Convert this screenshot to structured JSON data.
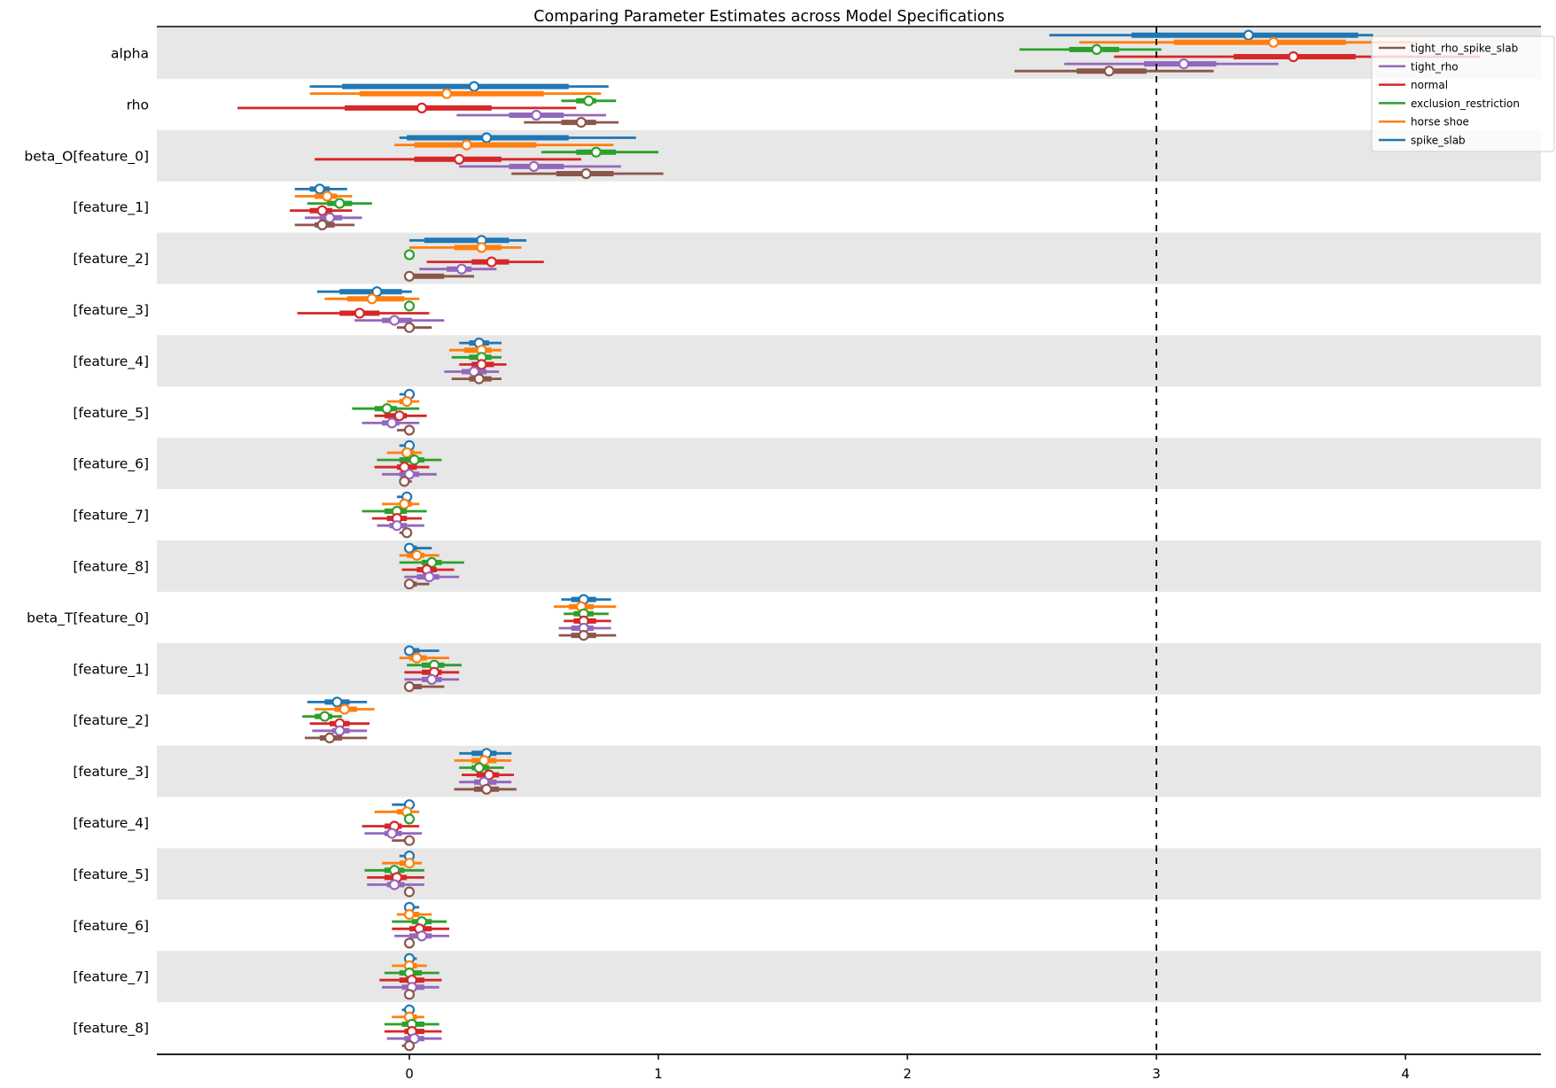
{
  "chart_data": {
    "type": "forest",
    "title": "Comparing Parameter Estimates across Model Specifications",
    "xlabel": "",
    "ylabel": "",
    "x_ticks": [
      0,
      1,
      2,
      3,
      4
    ],
    "xlim": [
      -1.014,
      4.544
    ],
    "reference_line_x": 3,
    "grid": false,
    "legend_position": "upper right",
    "colors": {
      "band": "#e7e7e7",
      "axis": "#000000",
      "reference_line": "#000000",
      "legend_border": "#cccccc",
      "marker_fill": "#ffffff"
    },
    "series": [
      {
        "name": "spike_slab",
        "color": "#1f77b4"
      },
      {
        "name": "horse shoe",
        "color": "#ff7f0e"
      },
      {
        "name": "exclusion_restriction",
        "color": "#2ca02c"
      },
      {
        "name": "normal",
        "color": "#d62728"
      },
      {
        "name": "tight_rho",
        "color": "#9467bd"
      },
      {
        "name": "tight_rho_spike_slab",
        "color": "#8c564b"
      }
    ],
    "interval_format": [
      "hdi_low",
      "quartile_low",
      "median",
      "quartile_high",
      "hdi_high"
    ],
    "rows": [
      {
        "label": "alpha",
        "shaded": true,
        "values": [
          [
            2.57,
            2.9,
            3.37,
            3.81,
            3.87
          ],
          [
            2.69,
            3.07,
            3.47,
            3.76,
            4.05
          ],
          [
            2.45,
            2.65,
            2.76,
            2.85,
            3.02
          ],
          [
            2.83,
            3.31,
            3.55,
            3.8,
            4.3
          ],
          [
            2.63,
            2.95,
            3.11,
            3.24,
            3.49
          ],
          [
            2.43,
            2.68,
            2.81,
            2.96,
            3.23
          ]
        ]
      },
      {
        "label": "rho",
        "shaded": false,
        "values": [
          [
            -0.4,
            -0.27,
            0.26,
            0.64,
            0.8
          ],
          [
            -0.4,
            -0.2,
            0.15,
            0.54,
            0.77
          ],
          [
            0.61,
            0.67,
            0.72,
            0.75,
            0.83
          ],
          [
            -0.69,
            -0.26,
            0.05,
            0.33,
            0.67
          ],
          [
            0.19,
            0.4,
            0.51,
            0.62,
            0.79
          ],
          [
            0.46,
            0.61,
            0.69,
            0.75,
            0.84
          ]
        ]
      },
      {
        "label": "beta_O[feature_0]",
        "shaded": true,
        "values": [
          [
            -0.04,
            -0.01,
            0.31,
            0.64,
            0.91
          ],
          [
            -0.06,
            0.02,
            0.23,
            0.51,
            0.82
          ],
          [
            0.53,
            0.67,
            0.75,
            0.83,
            1.0
          ],
          [
            -0.38,
            0.02,
            0.2,
            0.37,
            0.69
          ],
          [
            0.2,
            0.4,
            0.5,
            0.62,
            0.85
          ],
          [
            0.41,
            0.59,
            0.71,
            0.82,
            1.02
          ]
        ]
      },
      {
        "label": "[feature_1]",
        "shaded": false,
        "values": [
          [
            -0.46,
            -0.4,
            -0.36,
            -0.32,
            -0.25
          ],
          [
            -0.46,
            -0.38,
            -0.33,
            -0.29,
            -0.23
          ],
          [
            -0.41,
            -0.33,
            -0.28,
            -0.23,
            -0.15
          ],
          [
            -0.48,
            -0.4,
            -0.35,
            -0.31,
            -0.23
          ],
          [
            -0.42,
            -0.36,
            -0.32,
            -0.27,
            -0.19
          ],
          [
            -0.46,
            -0.38,
            -0.35,
            -0.3,
            -0.22
          ]
        ]
      },
      {
        "label": "[feature_2]",
        "shaded": true,
        "values": [
          [
            0.0,
            0.06,
            0.29,
            0.4,
            0.47
          ],
          [
            0.0,
            0.18,
            0.29,
            0.37,
            0.45
          ],
          [
            0.0,
            0.0,
            0.0,
            0.0,
            0.0
          ],
          [
            0.07,
            0.25,
            0.33,
            0.4,
            0.54
          ],
          [
            0.04,
            0.15,
            0.21,
            0.25,
            0.35
          ],
          [
            0.0,
            0.0,
            0.0,
            0.14,
            0.26
          ]
        ]
      },
      {
        "label": "[feature_3]",
        "shaded": false,
        "values": [
          [
            -0.37,
            -0.28,
            -0.13,
            -0.03,
            0.01
          ],
          [
            -0.34,
            -0.25,
            -0.15,
            -0.02,
            0.04
          ],
          [
            0.0,
            0.0,
            0.0,
            0.0,
            0.0
          ],
          [
            -0.45,
            -0.28,
            -0.2,
            -0.12,
            0.08
          ],
          [
            -0.22,
            -0.11,
            -0.06,
            0.01,
            0.14
          ],
          [
            -0.05,
            -0.01,
            0.0,
            0.02,
            0.09
          ]
        ]
      },
      {
        "label": "[feature_4]",
        "shaded": true,
        "values": [
          [
            0.2,
            0.24,
            0.28,
            0.32,
            0.37
          ],
          [
            0.16,
            0.22,
            0.29,
            0.33,
            0.37
          ],
          [
            0.17,
            0.24,
            0.29,
            0.33,
            0.37
          ],
          [
            0.2,
            0.25,
            0.29,
            0.34,
            0.39
          ],
          [
            0.14,
            0.21,
            0.26,
            0.31,
            0.36
          ],
          [
            0.17,
            0.24,
            0.28,
            0.33,
            0.37
          ]
        ]
      },
      {
        "label": "[feature_5]",
        "shaded": false,
        "values": [
          [
            -0.04,
            -0.01,
            0.0,
            0.01,
            0.02
          ],
          [
            -0.09,
            -0.04,
            -0.01,
            0.01,
            0.04
          ],
          [
            -0.23,
            -0.14,
            -0.09,
            -0.05,
            0.04
          ],
          [
            -0.14,
            -0.1,
            -0.04,
            -0.01,
            0.07
          ],
          [
            -0.19,
            -0.11,
            -0.07,
            -0.04,
            0.04
          ],
          [
            -0.05,
            -0.01,
            0.0,
            0.0,
            0.01
          ]
        ]
      },
      {
        "label": "[feature_6]",
        "shaded": true,
        "values": [
          [
            -0.04,
            -0.01,
            0.0,
            0.01,
            0.02
          ],
          [
            -0.09,
            -0.03,
            -0.01,
            0.02,
            0.05
          ],
          [
            -0.13,
            -0.04,
            0.02,
            0.06,
            0.13
          ],
          [
            -0.14,
            -0.05,
            -0.02,
            0.03,
            0.08
          ],
          [
            -0.11,
            -0.04,
            0.0,
            0.04,
            0.11
          ],
          [
            -0.04,
            -0.02,
            -0.02,
            -0.01,
            0.01
          ]
        ]
      },
      {
        "label": "[feature_7]",
        "shaded": false,
        "values": [
          [
            -0.05,
            -0.02,
            -0.01,
            0.0,
            0.01
          ],
          [
            -0.11,
            -0.04,
            -0.02,
            0.01,
            0.04
          ],
          [
            -0.19,
            -0.1,
            -0.05,
            -0.01,
            0.07
          ],
          [
            -0.15,
            -0.09,
            -0.05,
            -0.01,
            0.05
          ],
          [
            -0.13,
            -0.08,
            -0.05,
            -0.01,
            0.06
          ],
          [
            -0.04,
            -0.01,
            -0.01,
            0.0,
            0.01
          ]
        ]
      },
      {
        "label": "[feature_8]",
        "shaded": true,
        "values": [
          [
            0.0,
            0.0,
            0.0,
            0.03,
            0.09
          ],
          [
            -0.04,
            -0.01,
            0.03,
            0.06,
            0.12
          ],
          [
            -0.04,
            0.05,
            0.09,
            0.13,
            0.22
          ],
          [
            -0.03,
            0.03,
            0.07,
            0.11,
            0.18
          ],
          [
            -0.02,
            0.03,
            0.08,
            0.12,
            0.2
          ],
          [
            0.0,
            0.0,
            0.0,
            0.03,
            0.08
          ]
        ]
      },
      {
        "label": "beta_T[feature_0]",
        "shaded": false,
        "values": [
          [
            0.61,
            0.65,
            0.7,
            0.75,
            0.81
          ],
          [
            0.58,
            0.64,
            0.69,
            0.74,
            0.83
          ],
          [
            0.62,
            0.66,
            0.7,
            0.74,
            0.8
          ],
          [
            0.62,
            0.66,
            0.7,
            0.75,
            0.81
          ],
          [
            0.6,
            0.65,
            0.7,
            0.74,
            0.81
          ],
          [
            0.6,
            0.65,
            0.7,
            0.75,
            0.83
          ]
        ]
      },
      {
        "label": "[feature_1]",
        "shaded": true,
        "values": [
          [
            0.0,
            0.0,
            0.0,
            0.04,
            0.12
          ],
          [
            -0.04,
            0.0,
            0.03,
            0.07,
            0.16
          ],
          [
            -0.01,
            0.05,
            0.1,
            0.14,
            0.21
          ],
          [
            -0.02,
            0.05,
            0.1,
            0.13,
            0.2
          ],
          [
            -0.02,
            0.05,
            0.09,
            0.13,
            0.2
          ],
          [
            0.0,
            0.0,
            0.0,
            0.05,
            0.14
          ]
        ]
      },
      {
        "label": "[feature_2]",
        "shaded": false,
        "values": [
          [
            -0.41,
            -0.34,
            -0.29,
            -0.24,
            -0.17
          ],
          [
            -0.38,
            -0.3,
            -0.26,
            -0.21,
            -0.14
          ],
          [
            -0.43,
            -0.38,
            -0.34,
            -0.31,
            -0.27
          ],
          [
            -0.4,
            -0.32,
            -0.28,
            -0.24,
            -0.16
          ],
          [
            -0.39,
            -0.31,
            -0.28,
            -0.24,
            -0.17
          ],
          [
            -0.42,
            -0.36,
            -0.32,
            -0.27,
            -0.17
          ]
        ]
      },
      {
        "label": "[feature_3]",
        "shaded": true,
        "values": [
          [
            0.2,
            0.25,
            0.31,
            0.35,
            0.41
          ],
          [
            0.18,
            0.25,
            0.3,
            0.35,
            0.41
          ],
          [
            0.2,
            0.25,
            0.28,
            0.32,
            0.38
          ],
          [
            0.21,
            0.27,
            0.32,
            0.36,
            0.42
          ],
          [
            0.2,
            0.26,
            0.3,
            0.35,
            0.41
          ],
          [
            0.18,
            0.26,
            0.31,
            0.36,
            0.43
          ]
        ]
      },
      {
        "label": "[feature_4]",
        "shaded": false,
        "values": [
          [
            -0.07,
            -0.02,
            0.0,
            0.0,
            0.01
          ],
          [
            -0.14,
            -0.05,
            -0.01,
            0.01,
            0.04
          ],
          [
            0.0,
            0.0,
            0.0,
            0.0,
            0.0
          ],
          [
            -0.19,
            -0.1,
            -0.06,
            -0.03,
            0.04
          ],
          [
            -0.18,
            -0.1,
            -0.07,
            -0.03,
            0.05
          ],
          [
            -0.07,
            -0.02,
            0.0,
            0.0,
            0.01
          ]
        ]
      },
      {
        "label": "[feature_5]",
        "shaded": true,
        "values": [
          [
            -0.04,
            -0.01,
            0.0,
            0.01,
            0.02
          ],
          [
            -0.11,
            -0.04,
            0.0,
            0.02,
            0.05
          ],
          [
            -0.18,
            -0.1,
            -0.06,
            -0.02,
            0.06
          ],
          [
            -0.17,
            -0.1,
            -0.05,
            -0.01,
            0.06
          ],
          [
            -0.17,
            -0.09,
            -0.06,
            -0.02,
            0.06
          ],
          [
            -0.02,
            -0.01,
            0.0,
            0.0,
            0.01
          ]
        ]
      },
      {
        "label": "[feature_6]",
        "shaded": false,
        "values": [
          [
            0.0,
            0.0,
            0.0,
            0.02,
            0.04
          ],
          [
            -0.05,
            -0.01,
            0.0,
            0.04,
            0.09
          ],
          [
            -0.07,
            0.01,
            0.05,
            0.09,
            0.15
          ],
          [
            -0.07,
            0.0,
            0.04,
            0.09,
            0.16
          ],
          [
            -0.06,
            0.0,
            0.05,
            0.09,
            0.16
          ],
          [
            -0.02,
            -0.01,
            0.0,
            0.0,
            0.01
          ]
        ]
      },
      {
        "label": "[feature_7]",
        "shaded": true,
        "values": [
          [
            0.0,
            0.0,
            0.0,
            0.02,
            0.03
          ],
          [
            -0.07,
            -0.02,
            0.0,
            0.03,
            0.07
          ],
          [
            -0.1,
            -0.04,
            0.0,
            0.05,
            0.12
          ],
          [
            -0.12,
            -0.04,
            0.01,
            0.06,
            0.13
          ],
          [
            -0.11,
            -0.03,
            0.01,
            0.06,
            0.12
          ],
          [
            -0.02,
            -0.01,
            0.0,
            0.0,
            0.01
          ]
        ]
      },
      {
        "label": "[feature_8]",
        "shaded": false,
        "values": [
          [
            -0.03,
            -0.01,
            0.0,
            0.0,
            0.01
          ],
          [
            -0.07,
            -0.02,
            0.0,
            0.03,
            0.06
          ],
          [
            -0.1,
            -0.03,
            0.01,
            0.06,
            0.12
          ],
          [
            -0.1,
            -0.02,
            0.01,
            0.06,
            0.13
          ],
          [
            -0.09,
            -0.02,
            0.02,
            0.06,
            0.13
          ],
          [
            -0.03,
            -0.01,
            0.0,
            0.0,
            0.01
          ]
        ]
      }
    ],
    "legend_order": [
      "tight_rho_spike_slab",
      "tight_rho",
      "normal",
      "exclusion_restriction",
      "horse shoe",
      "spike_slab"
    ]
  }
}
